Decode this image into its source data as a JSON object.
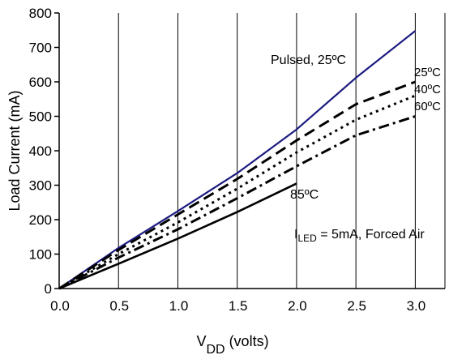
{
  "chart_data": {
    "type": "line",
    "title": "",
    "xlabel": "V",
    "xlabel_sub": "DD",
    "xlabel_suffix": " (volts)",
    "ylabel": "Load Current (mA)",
    "xlim": [
      0,
      3.25
    ],
    "ylim": [
      0,
      800
    ],
    "xticks": [
      0.0,
      0.5,
      1.0,
      1.5,
      2.0,
      2.5,
      3.0
    ],
    "xtick_labels": [
      "0.0",
      "0.5",
      "1.0",
      "1.5",
      "2.0",
      "2.5",
      "3.0"
    ],
    "yticks": [
      0,
      100,
      200,
      300,
      400,
      500,
      600,
      700,
      800
    ],
    "ytick_labels": [
      "0",
      "100",
      "200",
      "300",
      "400",
      "500",
      "600",
      "700",
      "800"
    ],
    "grid": "vertical",
    "series": [
      {
        "name": "Pulsed, 25ºC",
        "color": "#1a1a80",
        "dash": "solid",
        "x": [
          0,
          0.5,
          1.0,
          1.5,
          2.0,
          2.5,
          3.0
        ],
        "y": [
          0,
          118,
          225,
          335,
          462,
          612,
          748
        ]
      },
      {
        "name": "25ºC",
        "color": "#000000",
        "dash": "dash",
        "x": [
          0,
          0.5,
          1.0,
          1.5,
          2.0,
          2.5,
          3.0
        ],
        "y": [
          0,
          112,
          215,
          318,
          430,
          535,
          600
        ]
      },
      {
        "name": "40ºC",
        "color": "#000000",
        "dash": "dot",
        "x": [
          0,
          0.5,
          1.0,
          1.5,
          2.0,
          2.5,
          3.0
        ],
        "y": [
          0,
          100,
          192,
          290,
          395,
          490,
          560
        ]
      },
      {
        "name": "60ºC",
        "color": "#000000",
        "dash": "dashdot",
        "x": [
          0,
          0.5,
          1.0,
          1.5,
          2.0,
          2.5,
          3.0
        ],
        "y": [
          0,
          90,
          172,
          262,
          355,
          445,
          500
        ]
      },
      {
        "name": "85ºC",
        "color": "#000000",
        "dash": "solid",
        "x": [
          0,
          0.5,
          1.0,
          1.5,
          2.0
        ],
        "y": [
          0,
          72,
          145,
          222,
          305
        ]
      }
    ],
    "annotation": {
      "prefix": "I",
      "sub": "LED",
      "text": " = 5mA, Forced Air"
    }
  }
}
